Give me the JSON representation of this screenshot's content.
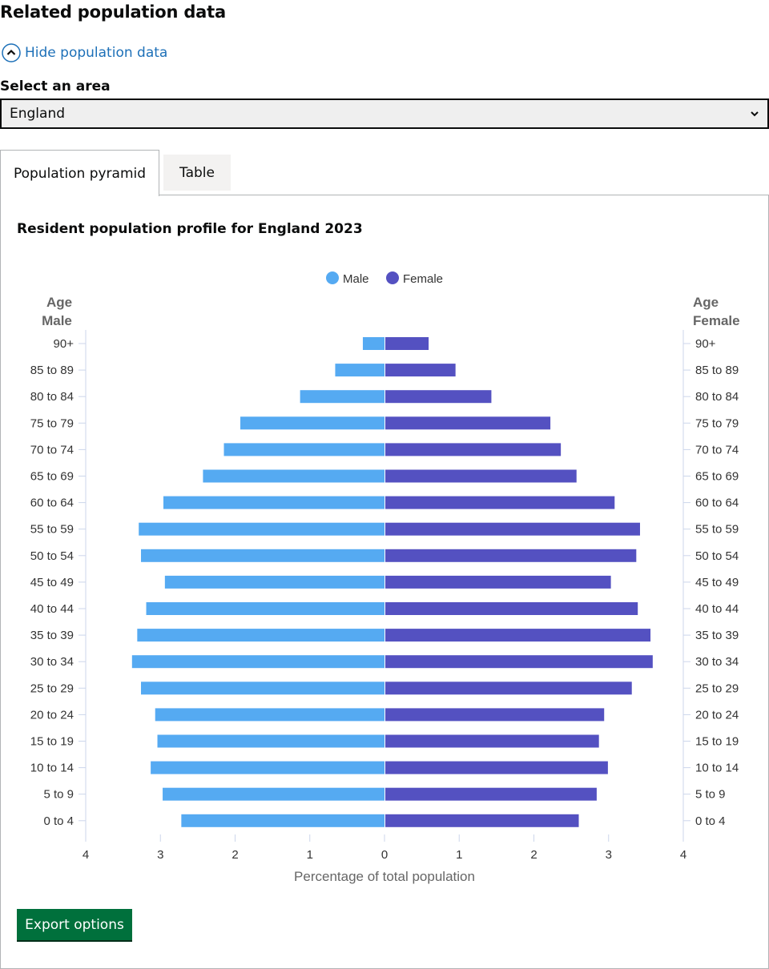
{
  "section": {
    "title": "Related population data",
    "toggle_label": "Hide population data"
  },
  "area_select": {
    "label": "Select an area",
    "selected": "England"
  },
  "tabs": [
    {
      "label": "Population pyramid",
      "active": true
    },
    {
      "label": "Table",
      "active": false
    }
  ],
  "export_label": "Export options",
  "colors": {
    "male": "#55aaf2",
    "female": "#5451c1",
    "link": "#1d70b8",
    "button": "#00703c"
  },
  "chart_data": {
    "type": "bar",
    "orientation": "horizontal-pyramid",
    "title": "Resident population profile for England 2023",
    "xlabel": "Percentage of total population",
    "ylabel_left": [
      "Age",
      "Male"
    ],
    "ylabel_right": [
      "Age",
      "Female"
    ],
    "xlim": [
      -4,
      4
    ],
    "x_ticks": [
      4,
      3,
      2,
      1,
      0,
      1,
      2,
      3,
      4
    ],
    "legend_position": "top-center",
    "categories": [
      "90+",
      "85 to 89",
      "80 to 84",
      "75 to 79",
      "70 to 74",
      "65 to 69",
      "60 to 64",
      "55 to 59",
      "50 to 54",
      "45 to 49",
      "40 to 44",
      "35 to 39",
      "30 to 34",
      "25 to 29",
      "20 to 24",
      "15 to 19",
      "10 to 14",
      "5 to 9",
      "0 to 4"
    ],
    "series": [
      {
        "name": "Male",
        "values": [
          0.29,
          0.66,
          1.13,
          1.93,
          2.15,
          2.43,
          2.96,
          3.29,
          3.26,
          2.94,
          3.19,
          3.31,
          3.38,
          3.26,
          3.07,
          3.04,
          3.13,
          2.97,
          2.72
        ]
      },
      {
        "name": "Female",
        "values": [
          0.58,
          0.94,
          1.42,
          2.21,
          2.35,
          2.56,
          3.07,
          3.41,
          3.36,
          3.02,
          3.38,
          3.55,
          3.58,
          3.3,
          2.93,
          2.86,
          2.98,
          2.83,
          2.59
        ]
      }
    ]
  }
}
